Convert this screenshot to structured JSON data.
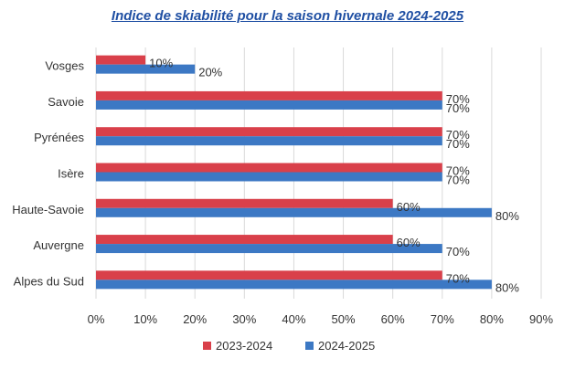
{
  "chart_data": {
    "type": "bar",
    "orientation": "horizontal",
    "title": "Indice de skiabilité pour la saison hivernale 2024-2025",
    "categories": [
      "Vosges",
      "Savoie",
      "Pyrénées",
      "Isère",
      "Haute-Savoie",
      "Auvergne",
      "Alpes du Sud"
    ],
    "series": [
      {
        "name": "2023-2024",
        "color": "#d9404a",
        "values": [
          10,
          70,
          70,
          70,
          60,
          60,
          70
        ]
      },
      {
        "name": "2024-2025",
        "color": "#3c78c4",
        "values": [
          20,
          70,
          70,
          70,
          80,
          70,
          80
        ]
      }
    ],
    "value_suffix": "%",
    "xlim": [
      0,
      90
    ],
    "xticks": [
      "0%",
      "10%",
      "20%",
      "30%",
      "40%",
      "50%",
      "60%",
      "70%",
      "80%",
      "90%"
    ],
    "grid": "vertical",
    "legend": "bottom"
  }
}
